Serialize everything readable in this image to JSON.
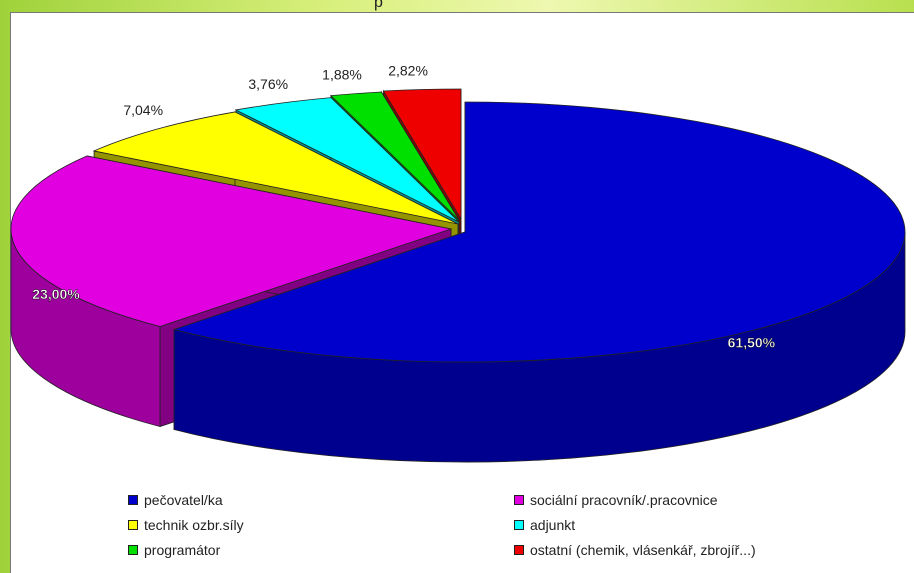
{
  "header": {
    "partial_title": "p"
  },
  "chart_data": {
    "type": "pie",
    "title": "",
    "categories": [
      "pečovatel/ka",
      "sociální pracovník/.pracovnice",
      "technik ozbr.síly",
      "adjunkt",
      "programátor",
      "ostatní (chemik, vlásenkář, zbrojíř...)"
    ],
    "values": [
      61.5,
      23.0,
      7.04,
      3.76,
      1.88,
      2.82
    ],
    "labels": [
      "61,50%",
      "23,00%",
      "7,04%",
      "3,76%",
      "1,88%",
      "2,82%"
    ],
    "colors": [
      "#0000cc",
      "#e000e0",
      "#ffff00",
      "#00ffff",
      "#00e000",
      "#ee0000"
    ],
    "legend_position": "bottom",
    "exploded": true,
    "three_d": true
  }
}
